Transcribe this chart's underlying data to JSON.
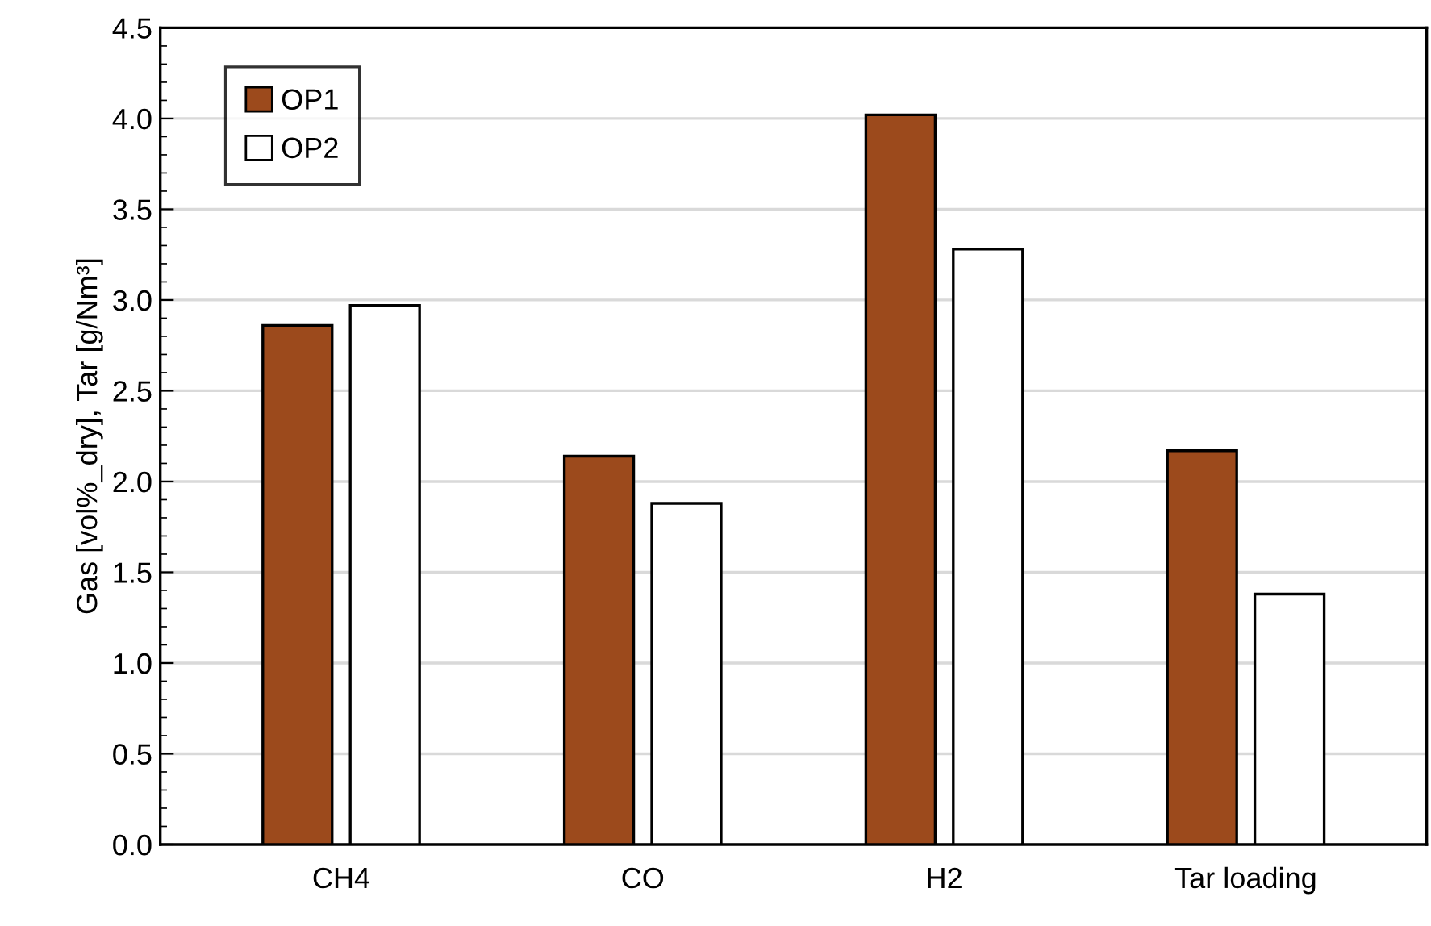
{
  "chart_data": {
    "type": "bar",
    "ylabel": "Gas [vol%_dry], Tar [g/Nm³]",
    "categories": [
      "CH4",
      "CO",
      "H2",
      "Tar loading"
    ],
    "series": [
      {
        "name": "OP1",
        "color": "#9c4a1c",
        "values": [
          2.86,
          2.14,
          4.02,
          2.17
        ]
      },
      {
        "name": "OP2",
        "color": "#ffffff",
        "values": [
          2.97,
          1.88,
          3.28,
          1.38
        ]
      }
    ],
    "ylim": [
      0,
      4.5
    ],
    "yticks": [
      {
        "value": 0,
        "label": "0.0"
      },
      0.5,
      {
        "value": 1,
        "label": "1.0"
      },
      1.5,
      {
        "value": 2,
        "label": "2.0"
      },
      2.5,
      {
        "value": 3,
        "label": "3.0"
      },
      3.5,
      {
        "value": 4,
        "label": "4.0"
      },
      4.5
    ],
    "grid": "y",
    "legend": "top left"
  }
}
